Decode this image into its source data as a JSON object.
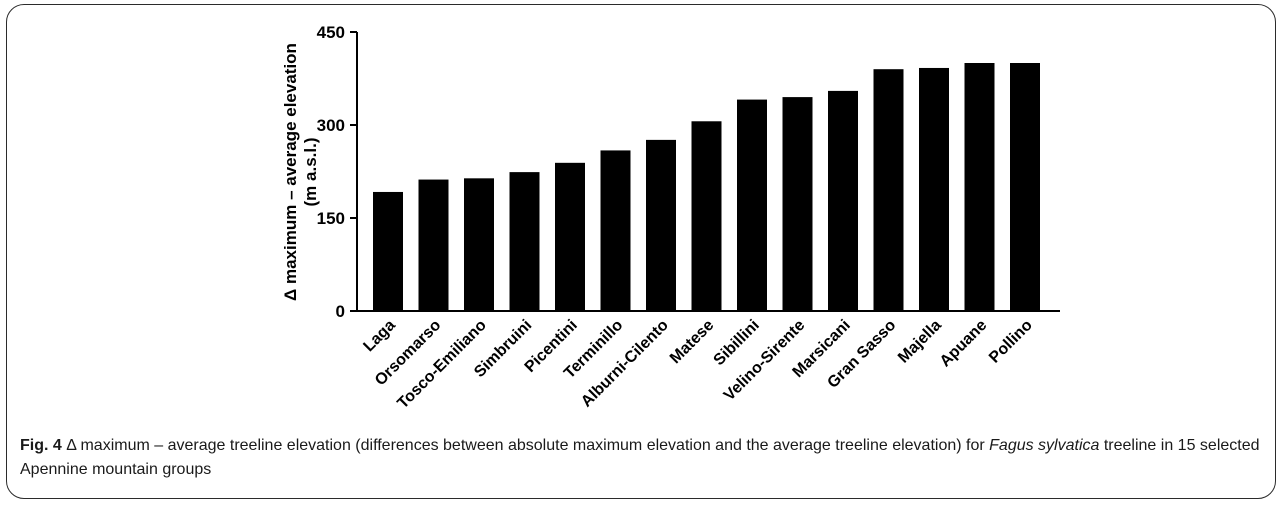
{
  "figure": {
    "label": "Fig. 4",
    "caption_parts": [
      {
        "text": " Δ maximum – average treeline elevation (differences between absolute maximum elevation and the average treeline elevation) for ",
        "style": "normal"
      },
      {
        "text": "Fagus sylvatica",
        "style": "italic"
      },
      {
        "text": " treeline in 15 selected Apennine mountain groups",
        "style": "normal"
      }
    ]
  },
  "chart_data": {
    "type": "bar",
    "ylabel_lines": [
      "Δ maximum – average elevation",
      "(m a.s.l.)"
    ],
    "xlabel": "",
    "ylim": [
      0,
      450
    ],
    "yticks": [
      0,
      150,
      300,
      450
    ],
    "grid": false,
    "bar_color": "#000000",
    "categories": [
      "Laga",
      "Orsomarso",
      "Tosco-Emiliano",
      "Simbruini",
      "Picentini",
      "Terminillo",
      "Alburni-Cilento",
      "Matese",
      "Sibillini",
      "Velino-Sirente",
      "Marsicani",
      "Gran Sasso",
      "Majella",
      "Apuane",
      "Pollino"
    ],
    "values": [
      192,
      212,
      214,
      224,
      239,
      259,
      276,
      306,
      341,
      345,
      355,
      390,
      392,
      400,
      400
    ]
  }
}
